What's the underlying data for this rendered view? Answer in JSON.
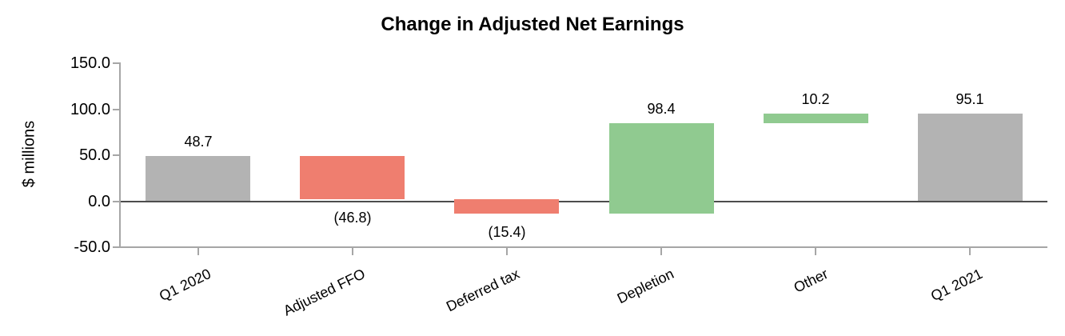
{
  "title": "Change in Adjusted Net Earnings",
  "chart_data": {
    "type": "bar",
    "subtype": "waterfall",
    "title": "Change in Adjusted Net Earnings",
    "xlabel": "",
    "ylabel": "$ millions",
    "ylim": [
      -50,
      150
    ],
    "ytick_step": 50,
    "yticks": [
      150,
      100,
      50,
      0,
      -50
    ],
    "ytick_labels": [
      "150.0",
      "100.0",
      "50.0",
      "0.0",
      "-50.0"
    ],
    "grid": "off",
    "legend": "none",
    "categories": [
      "Q1 2020",
      "Adjusted FFO",
      "Deferred tax",
      "Depletion",
      "Other",
      "Q1 2021"
    ],
    "bars": [
      {
        "category": "Q1 2020",
        "value": 48.7,
        "display_label": "48.7",
        "start": 0,
        "end": 48.7,
        "color_key": "gray",
        "label_position": "above"
      },
      {
        "category": "Adjusted FFO",
        "value": -46.8,
        "display_label": "(46.8)",
        "start": 48.7,
        "end": 1.9,
        "color_key": "red",
        "label_position": "below"
      },
      {
        "category": "Deferred tax",
        "value": -15.4,
        "display_label": "(15.4)",
        "start": 1.9,
        "end": -13.5,
        "color_key": "red",
        "label_position": "below"
      },
      {
        "category": "Depletion",
        "value": 98.4,
        "display_label": "98.4",
        "start": -13.5,
        "end": 84.9,
        "color_key": "green",
        "label_position": "above"
      },
      {
        "category": "Other",
        "value": 10.2,
        "display_label": "10.2",
        "start": 84.9,
        "end": 95.1,
        "color_key": "green",
        "label_position": "above"
      },
      {
        "category": "Q1 2021",
        "value": 95.1,
        "display_label": "95.1",
        "start": 0,
        "end": 95.1,
        "color_key": "gray",
        "label_position": "above"
      }
    ],
    "colors": {
      "gray": "#b3b3b3",
      "red": "#ef7e6f",
      "green": "#90ca90",
      "zero_line": "#4d4d4d",
      "axis": "#a6a6a6",
      "text": "#000000"
    }
  }
}
